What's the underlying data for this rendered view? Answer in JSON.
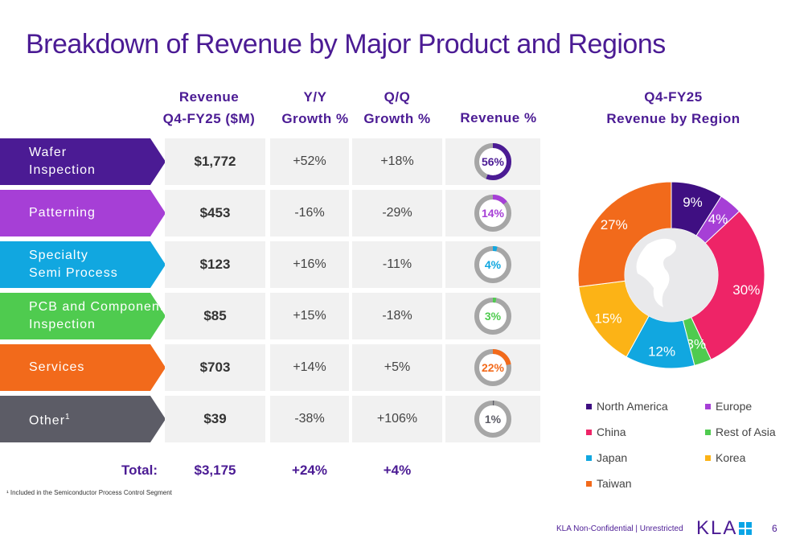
{
  "title": "Breakdown of Revenue by Major Product and Regions",
  "table": {
    "headers": {
      "revenue": [
        "Revenue",
        "Q4-FY25 ($M)"
      ],
      "yy": [
        "Y/Y",
        "Growth %"
      ],
      "qq": [
        "Q/Q",
        "Growth %"
      ],
      "pct": "Revenue %"
    },
    "rows": [
      {
        "label": "Wafer Inspection",
        "label_lines": [
          "Wafer",
          "Inspection"
        ],
        "sup": "",
        "revenue": "$1,772",
        "yy": "+52%",
        "qq": "+18%",
        "pct": "56%",
        "pct_value": 56,
        "color": "#4b1b94"
      },
      {
        "label": "Patterning",
        "label_lines": [
          "Patterning"
        ],
        "sup": "",
        "revenue": "$453",
        "yy": "-16%",
        "qq": "-29%",
        "pct": "14%",
        "pct_value": 14,
        "color": "#a63fd6"
      },
      {
        "label": "Specialty Semi Process",
        "label_lines": [
          "Specialty",
          "Semi Process"
        ],
        "sup": "",
        "revenue": "$123",
        "yy": "+16%",
        "qq": "-11%",
        "pct": "4%",
        "pct_value": 4,
        "color": "#11a7e0"
      },
      {
        "label": "PCB and Component Inspection",
        "label_lines": [
          "PCB and Component",
          "Inspection"
        ],
        "sup": "",
        "revenue": "$85",
        "yy": "+15%",
        "qq": "-18%",
        "pct": "3%",
        "pct_value": 3,
        "color": "#4fcb4f"
      },
      {
        "label": "Services",
        "label_lines": [
          "Services"
        ],
        "sup": "",
        "revenue": "$703",
        "yy": "+14%",
        "qq": "+5%",
        "pct": "22%",
        "pct_value": 22,
        "color": "#f26a1b"
      },
      {
        "label": "Other",
        "label_lines": [
          "Other"
        ],
        "sup": "1",
        "revenue": "$39",
        "yy": "-38%",
        "qq": "+106%",
        "pct": "1%",
        "pct_value": 1,
        "color": "#5c5c66"
      }
    ],
    "total": {
      "label": "Total:",
      "revenue": "$3,175",
      "yy": "+24%",
      "qq": "+4%"
    }
  },
  "footnote": "¹ Included in the Semiconductor Process Control Segment",
  "chart_data": {
    "type": "pie",
    "title": "Q4-FY25 Revenue by Region",
    "title_lines": [
      "Q4-FY25",
      "Revenue by Region"
    ],
    "categories": [
      "North America",
      "Europe",
      "China",
      "Rest of Asia",
      "Japan",
      "Korea",
      "Taiwan"
    ],
    "values": [
      9,
      4,
      30,
      3,
      12,
      15,
      27
    ],
    "labels": [
      "9%",
      "4%",
      "30%",
      "3%",
      "12%",
      "15%",
      "27%"
    ],
    "colors": [
      "#3f0f82",
      "#a63fd6",
      "#ee2467",
      "#4fcb4f",
      "#11a7e0",
      "#fcb316",
      "#f26a1b"
    ],
    "legend_position": "bottom"
  },
  "footer": {
    "text": "KLA Non-Confidential | Unrestricted",
    "logo_text": "KLA",
    "page": "6"
  }
}
